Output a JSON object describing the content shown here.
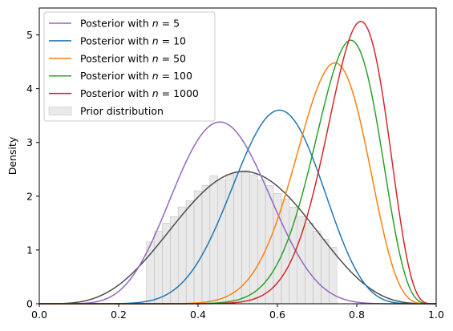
{
  "chart_data": {
    "type": "line",
    "title": "",
    "xlabel": "",
    "ylabel": "Density",
    "xlim": [
      0.0,
      1.0
    ],
    "ylim": [
      0,
      5.5
    ],
    "x_ticks": [
      "0.0",
      "0.2",
      "0.4",
      "0.6",
      "0.8",
      "1.0"
    ],
    "y_ticks": [
      "0",
      "1",
      "2",
      "3",
      "4",
      "5"
    ],
    "grid": false,
    "legend_position": "upper-left",
    "series": [
      {
        "name": "Posterior with n = 5",
        "name_prefix": "Posterior with ",
        "name_math": "n = 5",
        "color": "#9467bd",
        "shape": "beta",
        "mode": 0.455,
        "peak": 3.38
      },
      {
        "name": "Posterior with n = 10",
        "name_prefix": "Posterior with ",
        "name_math": "n = 10",
        "color": "#1f77b4",
        "shape": "beta",
        "mode": 0.605,
        "peak": 3.6
      },
      {
        "name": "Posterior with n = 50",
        "name_prefix": "Posterior with ",
        "name_math": "n = 50",
        "color": "#ff7f0e",
        "shape": "beta",
        "mode": 0.745,
        "peak": 4.48
      },
      {
        "name": "Posterior with n = 100",
        "name_prefix": "Posterior with ",
        "name_math": "n = 100",
        "color": "#2ca02c",
        "shape": "beta",
        "mode": 0.785,
        "peak": 4.9
      },
      {
        "name": "Posterior with n = 1000",
        "name_prefix": "Posterior with ",
        "name_math": "n = 1000",
        "color": "#d62728",
        "shape": "beta",
        "mode": 0.81,
        "peak": 5.25
      }
    ],
    "prior": {
      "name": "Prior distribution",
      "hist_color": "#d3d3d3",
      "kde_color": "#4d4d4d",
      "mode": 0.515,
      "peak": 2.46,
      "bins_x": [
        0.28,
        0.3,
        0.32,
        0.34,
        0.36,
        0.38,
        0.4,
        0.42,
        0.44,
        0.46,
        0.48,
        0.5,
        0.52,
        0.54,
        0.56,
        0.58,
        0.6,
        0.62,
        0.64,
        0.66,
        0.68,
        0.7,
        0.72,
        0.74
      ],
      "bins_h": [
        1.15,
        1.35,
        1.5,
        1.62,
        1.8,
        1.92,
        2.1,
        2.2,
        2.38,
        2.3,
        2.4,
        2.45,
        2.48,
        2.4,
        2.3,
        2.2,
        2.05,
        1.95,
        1.8,
        1.62,
        1.5,
        1.35,
        1.2,
        1.05
      ]
    }
  }
}
